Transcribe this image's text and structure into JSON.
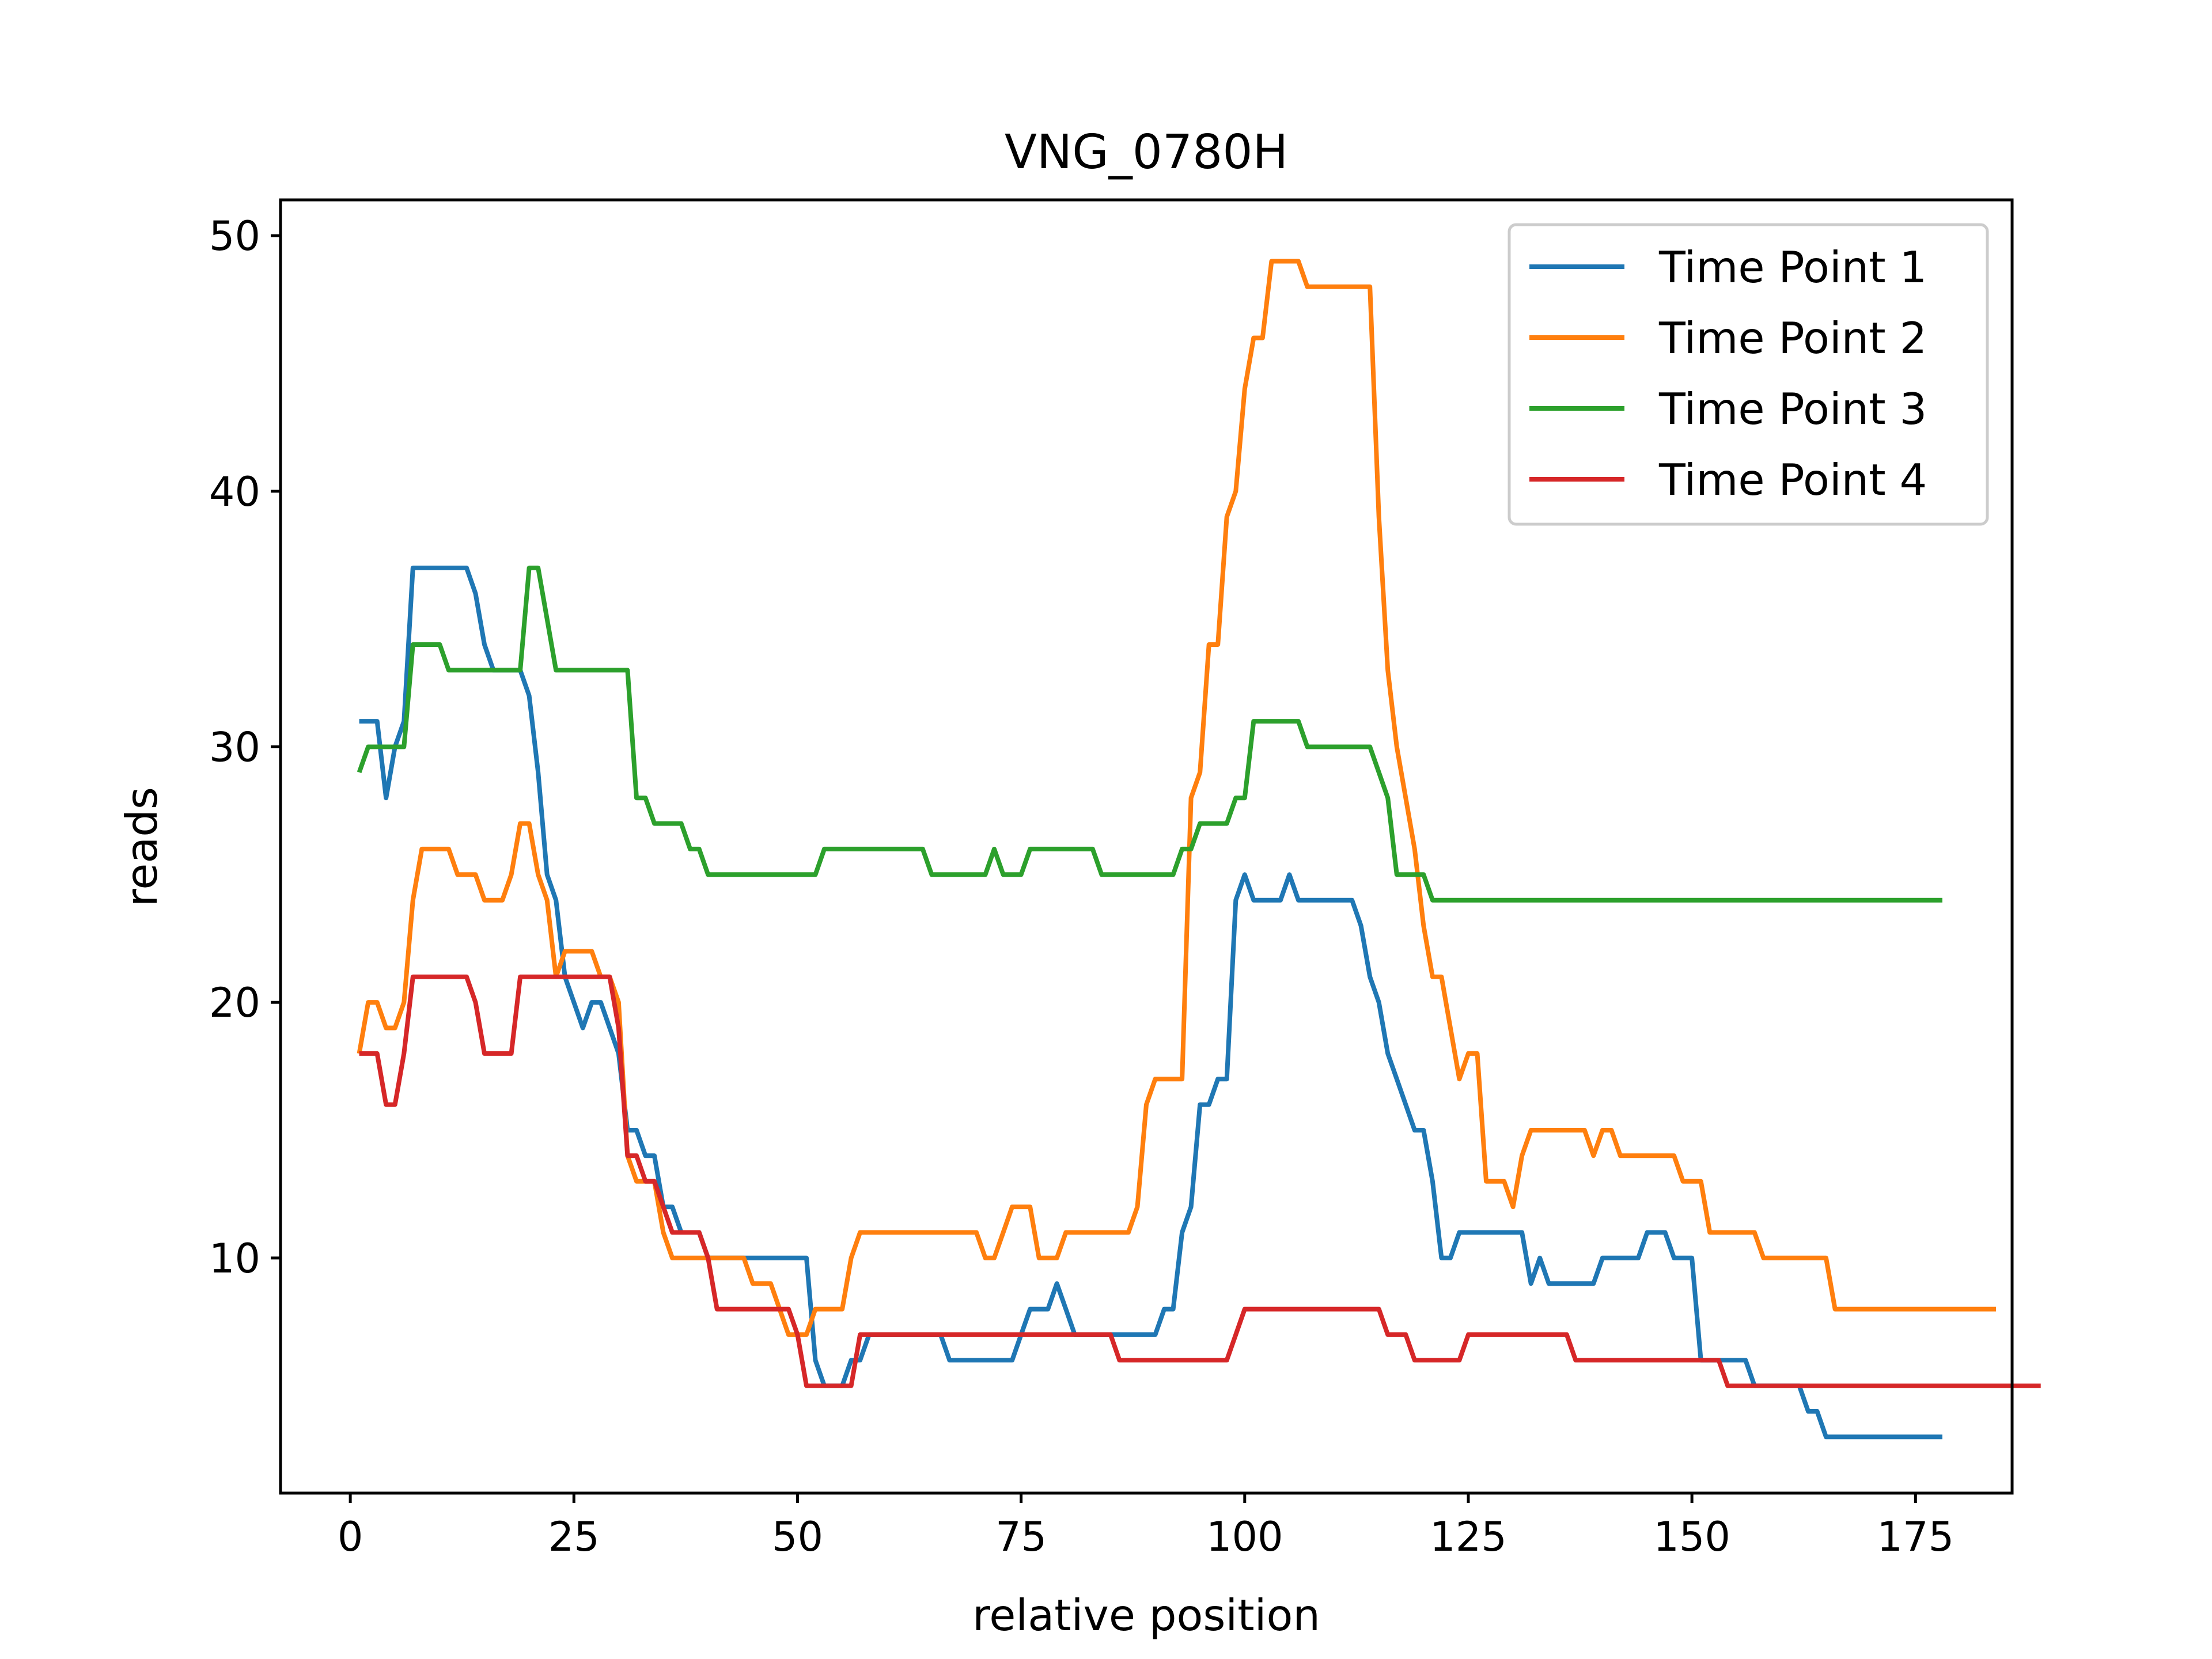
{
  "chart_data": {
    "type": "line",
    "title": "VNG_0780H",
    "xlabel": "relative position",
    "ylabel": "reads",
    "xlim": [
      -7.8,
      185.8
    ],
    "ylim": [
      0.8,
      51.4
    ],
    "xticks": [
      0,
      25,
      50,
      75,
      100,
      125,
      150,
      175
    ],
    "yticks": [
      10,
      20,
      30,
      40,
      50
    ],
    "grid": false,
    "legend_position": "top-right",
    "x_start": 1,
    "series": [
      {
        "name": "Time Point 1",
        "color": "#1f77b4",
        "values": [
          31,
          31,
          31,
          28,
          30,
          31,
          37,
          37,
          37,
          37,
          37,
          37,
          37,
          36,
          34,
          33,
          33,
          33,
          33,
          32,
          29,
          25,
          24,
          21,
          20,
          19,
          20,
          20,
          19,
          18,
          15,
          15,
          14,
          14,
          12,
          12,
          11,
          11,
          11,
          10,
          10,
          10,
          10,
          10,
          10,
          10,
          10,
          10,
          10,
          10,
          10,
          6,
          5,
          5,
          5,
          6,
          6,
          7,
          7,
          7,
          7,
          7,
          7,
          7,
          7,
          7,
          6,
          6,
          6,
          6,
          6,
          6,
          6,
          6,
          7,
          8,
          8,
          8,
          9,
          8,
          7,
          7,
          7,
          7,
          7,
          7,
          7,
          7,
          7,
          7,
          8,
          8,
          11,
          12,
          16,
          16,
          17,
          17,
          24,
          25,
          24,
          24,
          24,
          24,
          25,
          24,
          24,
          24,
          24,
          24,
          24,
          24,
          23,
          21,
          20,
          18,
          17,
          16,
          15,
          15,
          13,
          10,
          10,
          11,
          11,
          11,
          11,
          11,
          11,
          11,
          11,
          9,
          10,
          9,
          9,
          9,
          9,
          9,
          9,
          10,
          10,
          10,
          10,
          10,
          11,
          11,
          11,
          10,
          10,
          10,
          6,
          6,
          6,
          6,
          6,
          6,
          5,
          5,
          5,
          5,
          5,
          5,
          4,
          4,
          3,
          3,
          3,
          3,
          3,
          3,
          3,
          3,
          3,
          3,
          3,
          3,
          3,
          3
        ]
      },
      {
        "name": "Time Point 2",
        "color": "#ff7f0e",
        "values": [
          18,
          20,
          20,
          19,
          19,
          20,
          24,
          26,
          26,
          26,
          26,
          25,
          25,
          25,
          24,
          24,
          24,
          25,
          27,
          27,
          25,
          24,
          21,
          22,
          22,
          22,
          22,
          21,
          21,
          20,
          14,
          13,
          13,
          13,
          11,
          10,
          10,
          10,
          10,
          10,
          10,
          10,
          10,
          10,
          9,
          9,
          9,
          8,
          7,
          7,
          7,
          8,
          8,
          8,
          8,
          10,
          11,
          11,
          11,
          11,
          11,
          11,
          11,
          11,
          11,
          11,
          11,
          11,
          11,
          11,
          10,
          10,
          11,
          12,
          12,
          12,
          10,
          10,
          10,
          11,
          11,
          11,
          11,
          11,
          11,
          11,
          11,
          12,
          16,
          17,
          17,
          17,
          17,
          28,
          29,
          34,
          34,
          39,
          40,
          44,
          46,
          46,
          49,
          49,
          49,
          49,
          48,
          48,
          48,
          48,
          48,
          48,
          48,
          48,
          39,
          33,
          30,
          28,
          26,
          23,
          21,
          21,
          19,
          17,
          18,
          18,
          13,
          13,
          13,
          12,
          14,
          15,
          15,
          15,
          15,
          15,
          15,
          15,
          14,
          15,
          15,
          14,
          14,
          14,
          14,
          14,
          14,
          14,
          13,
          13,
          13,
          11,
          11,
          11,
          11,
          11,
          11,
          10,
          10,
          10,
          10,
          10,
          10,
          10,
          10,
          8,
          8,
          8,
          8,
          8,
          8,
          8,
          8,
          8,
          8,
          8,
          8,
          8,
          8,
          8,
          8,
          8,
          8,
          8
        ]
      },
      {
        "name": "Time Point 3",
        "color": "#2ca02c",
        "values": [
          29,
          30,
          30,
          30,
          30,
          30,
          34,
          34,
          34,
          34,
          33,
          33,
          33,
          33,
          33,
          33,
          33,
          33,
          33,
          37,
          37,
          35,
          33,
          33,
          33,
          33,
          33,
          33,
          33,
          33,
          33,
          28,
          28,
          27,
          27,
          27,
          27,
          26,
          26,
          25,
          25,
          25,
          25,
          25,
          25,
          25,
          25,
          25,
          25,
          25,
          25,
          25,
          26,
          26,
          26,
          26,
          26,
          26,
          26,
          26,
          26,
          26,
          26,
          26,
          25,
          25,
          25,
          25,
          25,
          25,
          25,
          26,
          25,
          25,
          25,
          26,
          26,
          26,
          26,
          26,
          26,
          26,
          26,
          25,
          25,
          25,
          25,
          25,
          25,
          25,
          25,
          25,
          26,
          26,
          27,
          27,
          27,
          27,
          28,
          28,
          31,
          31,
          31,
          31,
          31,
          31,
          30,
          30,
          30,
          30,
          30,
          30,
          30,
          30,
          29,
          28,
          25,
          25,
          25,
          25,
          24,
          24,
          24,
          24,
          24,
          24,
          24,
          24,
          24,
          24,
          24,
          24,
          24,
          24,
          24,
          24,
          24,
          24,
          24,
          24,
          24,
          24,
          24,
          24,
          24,
          24,
          24,
          24,
          24,
          24,
          24,
          24,
          24,
          24,
          24,
          24,
          24,
          24,
          24,
          24,
          24,
          24,
          24,
          24,
          24,
          24,
          24,
          24,
          24,
          24,
          24,
          24,
          24,
          24,
          24,
          24,
          24,
          24
        ]
      },
      {
        "name": "Time Point 4",
        "color": "#d62728",
        "values": [
          18,
          18,
          18,
          16,
          16,
          18,
          21,
          21,
          21,
          21,
          21,
          21,
          21,
          20,
          18,
          18,
          18,
          18,
          21,
          21,
          21,
          21,
          21,
          21,
          21,
          21,
          21,
          21,
          21,
          19,
          14,
          14,
          13,
          13,
          12,
          11,
          11,
          11,
          11,
          10,
          8,
          8,
          8,
          8,
          8,
          8,
          8,
          8,
          8,
          7,
          5,
          5,
          5,
          5,
          5,
          5,
          7,
          7,
          7,
          7,
          7,
          7,
          7,
          7,
          7,
          7,
          7,
          7,
          7,
          7,
          7,
          7,
          7,
          7,
          7,
          7,
          7,
          7,
          7,
          7,
          7,
          7,
          7,
          7,
          7,
          6,
          6,
          6,
          6,
          6,
          6,
          6,
          6,
          6,
          6,
          6,
          6,
          6,
          7,
          8,
          8,
          8,
          8,
          8,
          8,
          8,
          8,
          8,
          8,
          8,
          8,
          8,
          8,
          8,
          8,
          7,
          7,
          7,
          6,
          6,
          6,
          6,
          6,
          6,
          7,
          7,
          7,
          7,
          7,
          7,
          7,
          7,
          7,
          7,
          7,
          7,
          6,
          6,
          6,
          6,
          6,
          6,
          6,
          6,
          6,
          6,
          6,
          6,
          6,
          6,
          6,
          6,
          6,
          5,
          5,
          5,
          5,
          5,
          5,
          5,
          5,
          5,
          5,
          5,
          5,
          5,
          5,
          5,
          5,
          5,
          5,
          5,
          5,
          5,
          5,
          5,
          5,
          5,
          5,
          5,
          5,
          5,
          5,
          5,
          5,
          5,
          5,
          5,
          5
        ]
      }
    ]
  }
}
